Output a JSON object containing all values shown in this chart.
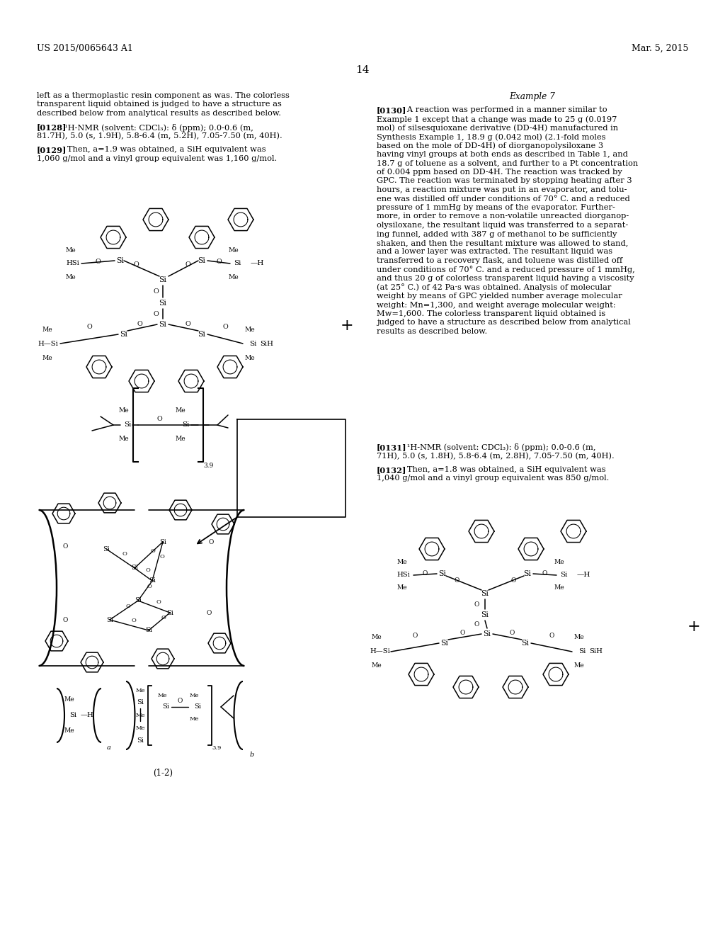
{
  "background_color": "#ffffff",
  "header_left": "US 2015/0065643 A1",
  "header_right": "Mar. 5, 2015",
  "page_number": "14",
  "body_fs": 8.2,
  "header_fs": 9.0,
  "pagenum_fs": 11.0,
  "left_col_lines": [
    "left as a thermoplastic resin component as was. The colorless",
    "transparent liquid obtained is judged to have a structure as",
    "described below from analytical results as described below.",
    "",
    "[0128]  ¹H-NMR (solvent: CDCl₃): δ (ppm); 0.0-0.6 (m,",
    "81.7H), 5.0 (s, 1.9H), 5.8-6.4 (m, 5.2H), 7.05-7.50 (m, 40H).",
    "",
    "[0129]   Then, a=1.9 was obtained, a SiH equivalent was",
    "1,060 g/mol and a vinyl group equivalent was 1,160 g/mol."
  ],
  "right_col_top_lines": [
    "Example 7",
    "",
    "[0130]   A reaction was performed in a manner similar to",
    "Example 1 except that a change was made to 25 g (0.0197",
    "mol) of silsesquioxane derivative (DD-4H) manufactured in",
    "Synthesis Example 1, 18.9 g (0.042 mol) (2.1-fold moles",
    "based on the mole of DD-4H) of diorganopolysiloxane 3",
    "having vinyl groups at both ends as described in Table 1, and",
    "18.7 g of toluene as a solvent, and further to a Pt concentration",
    "of 0.004 ppm based on DD-4H. The reaction was tracked by",
    "GPC. The reaction was terminated by stopping heating after 3",
    "hours, a reaction mixture was put in an evaporator, and tolu-",
    "ene was distilled off under conditions of 70° C. and a reduced",
    "pressure of 1 mmHg by means of the evaporator. Further-",
    "more, in order to remove a non-volatile unreacted diorganop-",
    "olysiloxane, the resultant liquid was transferred to a separat-",
    "ing funnel, added with 387 g of methanol to be sufficiently",
    "shaken, and then the resultant mixture was allowed to stand,",
    "and a lower layer was extracted. The resultant liquid was",
    "transferred to a recovery flask, and toluene was distilled off",
    "under conditions of 70° C. and a reduced pressure of 1 mmHg,",
    "and thus 20 g of colorless transparent liquid having a viscosity",
    "(at 25° C.) of 42 Pa·s was obtained. Analysis of molecular",
    "weight by means of GPC yielded number average molecular",
    "weight: Mn=1,300, and weight average molecular weight:",
    "Mw=1,600. The colorless transparent liquid obtained is",
    "judged to have a structure as described below from analytical",
    "results as described below."
  ],
  "right_col_bottom_lines": [
    "[0131]   ¹H-NMR (solvent: CDCl₃): δ (ppm); 0.0-0.6 (m,",
    "71H), 5.0 (s, 1.8H), 5.8-6.4 (m, 2.8H), 7.05-7.50 (m, 40H).",
    "",
    "[0132]   Then, a=1.8 was obtained, a SiH equivalent was",
    "1,040 g/mol and a vinyl group equivalent was 850 g/mol."
  ],
  "label_12": "(1-2)"
}
